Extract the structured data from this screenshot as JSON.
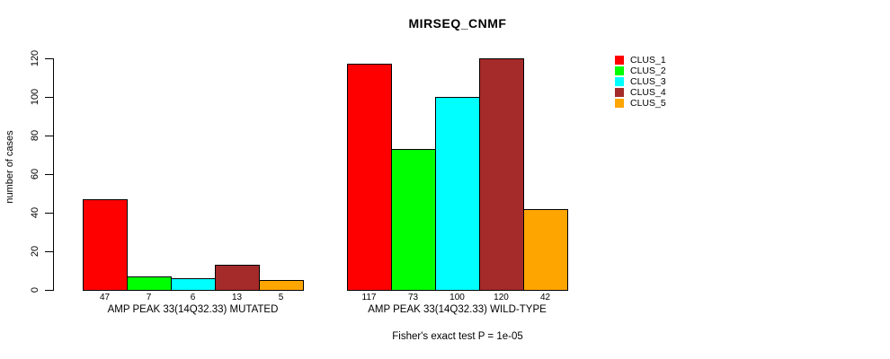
{
  "title": "MIRSEQ_CNMF",
  "footnote": "Fisher's exact test P = 1e-05",
  "y_axis": {
    "label": "number of cases",
    "ticks": [
      0,
      20,
      40,
      60,
      80,
      100,
      120
    ]
  },
  "legend": {
    "items": [
      {
        "label": "CLUS_1",
        "color": "#ff0000"
      },
      {
        "label": "CLUS_2",
        "color": "#00ff00"
      },
      {
        "label": "CLUS_3",
        "color": "#00ffff"
      },
      {
        "label": "CLUS_4",
        "color": "#a52a2a"
      },
      {
        "label": "CLUS_5",
        "color": "#ffa500"
      }
    ]
  },
  "chart_data": {
    "type": "bar",
    "title": "MIRSEQ_CNMF",
    "ylabel": "number of cases",
    "ylim": [
      0,
      120
    ],
    "yticks": [
      0,
      20,
      40,
      60,
      80,
      100,
      120
    ],
    "grid": false,
    "legend_position": "right",
    "categories": [
      "CLUS_1",
      "CLUS_2",
      "CLUS_3",
      "CLUS_4",
      "CLUS_5"
    ],
    "series_colors": [
      "#ff0000",
      "#00ff00",
      "#00ffff",
      "#a52a2a",
      "#ffa500"
    ],
    "groups": [
      {
        "label": "AMP PEAK 33(14Q32.33) MUTATED",
        "values": [
          47,
          7,
          6,
          13,
          5
        ]
      },
      {
        "label": "AMP PEAK 33(14Q32.33) WILD-TYPE",
        "values": [
          117,
          73,
          100,
          120,
          42
        ]
      }
    ],
    "annotation": "Fisher's exact test P = 1e-05"
  }
}
